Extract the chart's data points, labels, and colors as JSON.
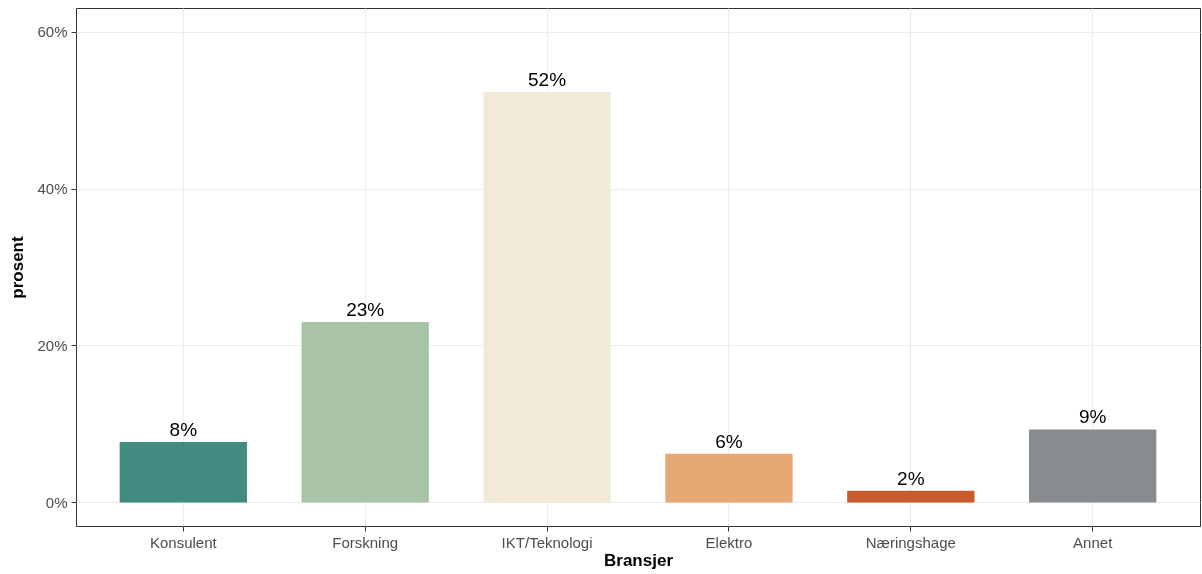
{
  "chart_data": {
    "type": "bar",
    "xlabel": "Bransjer",
    "ylabel": "prosent",
    "categories": [
      "Konsulent",
      "Forskning",
      "IKT/Teknologi",
      "Elektro",
      "Næringshage",
      "Annet"
    ],
    "values": [
      7.7,
      23.0,
      52.3,
      6.2,
      1.5,
      9.3
    ],
    "colors": [
      "#428b80",
      "#a8c3a5",
      "#f0ead7",
      "#e8a874",
      "#c65c2e",
      "#898c8e"
    ],
    "value_labels": [
      "8%",
      "23%",
      "52%",
      "6%",
      "2%",
      "9%"
    ],
    "ylim": [
      -3,
      63
    ],
    "yticks": [
      {
        "value": 0,
        "label": "0%"
      },
      {
        "value": 20,
        "label": "20%"
      },
      {
        "value": 40,
        "label": "40%"
      },
      {
        "value": 60,
        "label": "60%"
      }
    ],
    "grid": true
  }
}
